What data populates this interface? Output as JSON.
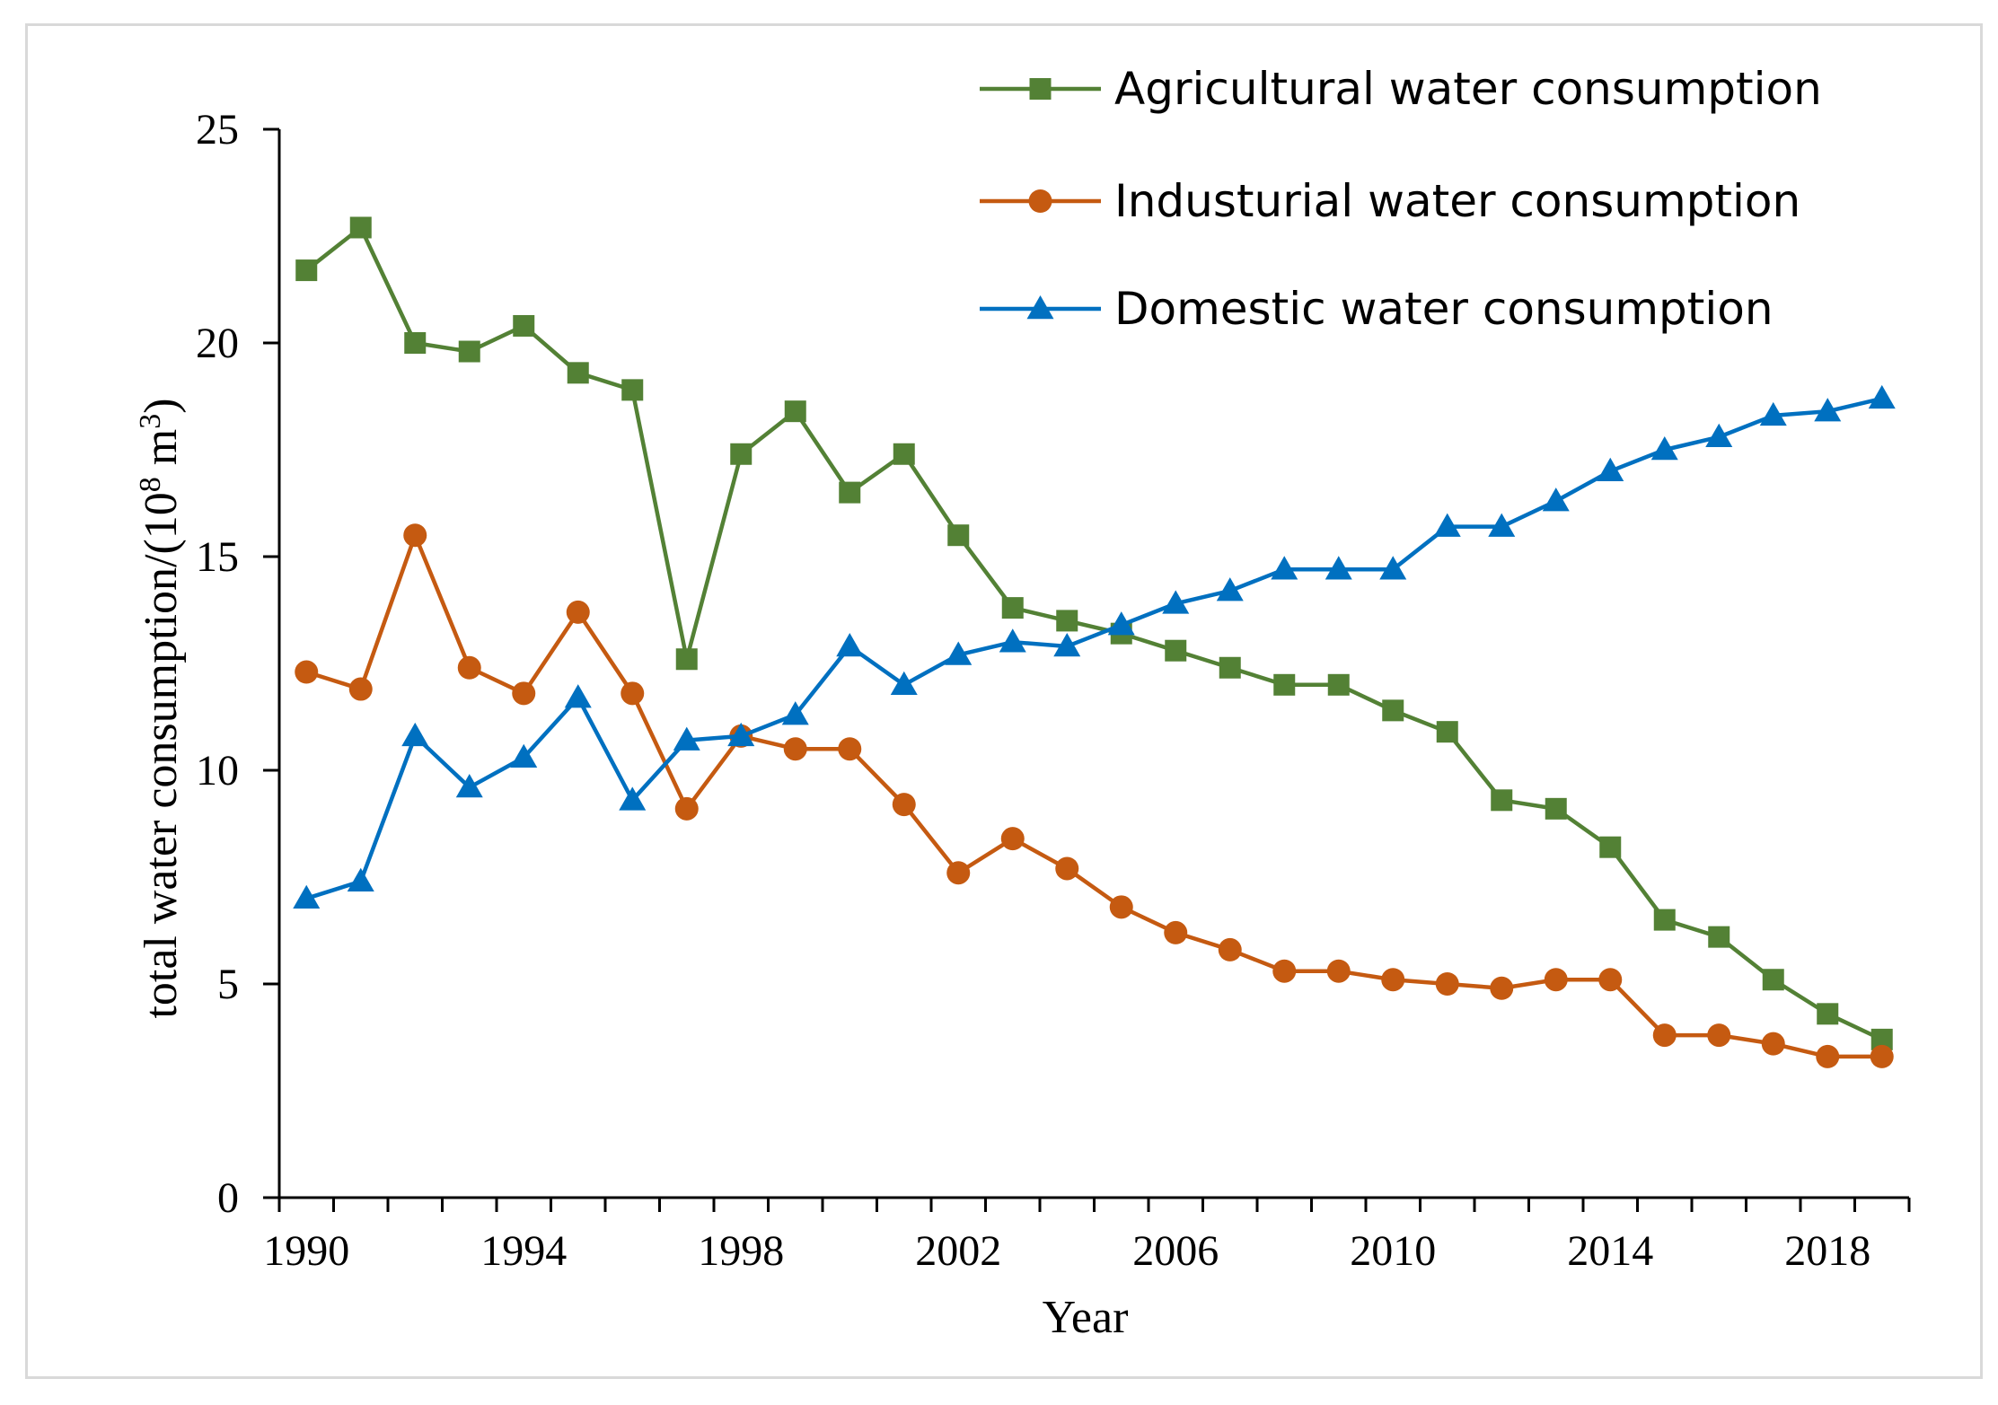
{
  "chart_data": {
    "type": "line",
    "title": "",
    "xlabel": "Year",
    "ylabel": "total water consumption/(10",
    "ylabel_sup1": "8",
    "ylabel_mid": " m",
    "ylabel_sup2": "3",
    "ylabel_end": ")",
    "x": [
      1990,
      1991,
      1992,
      1993,
      1994,
      1995,
      1996,
      1997,
      1998,
      1999,
      2000,
      2001,
      2002,
      2003,
      2004,
      2005,
      2006,
      2007,
      2008,
      2009,
      2010,
      2011,
      2012,
      2013,
      2014,
      2015,
      2016,
      2017,
      2018,
      2019
    ],
    "xlim": [
      1989.5,
      2019.5
    ],
    "ylim": [
      0,
      25
    ],
    "xticks": [
      1990,
      1994,
      1998,
      2002,
      2006,
      2010,
      2014,
      2018
    ],
    "yticks": [
      0,
      5,
      10,
      15,
      20,
      25
    ],
    "legend_position": "top-right",
    "series": [
      {
        "name": "Agricultural water consumption",
        "color": "#538135",
        "marker": "square",
        "values": [
          21.7,
          22.7,
          20.0,
          19.8,
          20.4,
          19.3,
          18.9,
          12.6,
          17.4,
          18.4,
          16.5,
          17.4,
          15.5,
          13.8,
          13.5,
          13.2,
          12.8,
          12.4,
          12.0,
          12.0,
          11.4,
          10.9,
          9.3,
          9.1,
          8.2,
          6.5,
          6.1,
          5.1,
          4.3,
          3.7
        ]
      },
      {
        "name": "Industurial water consumption",
        "color": "#c55a11",
        "marker": "circle",
        "values": [
          12.3,
          11.9,
          15.5,
          12.4,
          11.8,
          13.7,
          11.8,
          9.1,
          10.8,
          10.5,
          10.5,
          9.2,
          7.6,
          8.4,
          7.7,
          6.8,
          6.2,
          5.8,
          5.3,
          5.3,
          5.1,
          5.0,
          4.9,
          5.1,
          5.1,
          3.8,
          3.8,
          3.6,
          3.3,
          3.3
        ]
      },
      {
        "name": "Domestic water consumption",
        "color": "#0070c0",
        "marker": "triangle",
        "values": [
          7.0,
          7.4,
          10.8,
          9.6,
          10.3,
          11.7,
          9.3,
          10.7,
          10.8,
          11.3,
          12.9,
          12.0,
          12.7,
          13.0,
          12.9,
          13.4,
          13.9,
          14.2,
          14.7,
          14.7,
          14.7,
          15.7,
          15.7,
          16.3,
          17.0,
          17.5,
          17.8,
          18.3,
          18.4,
          18.7
        ]
      }
    ]
  }
}
